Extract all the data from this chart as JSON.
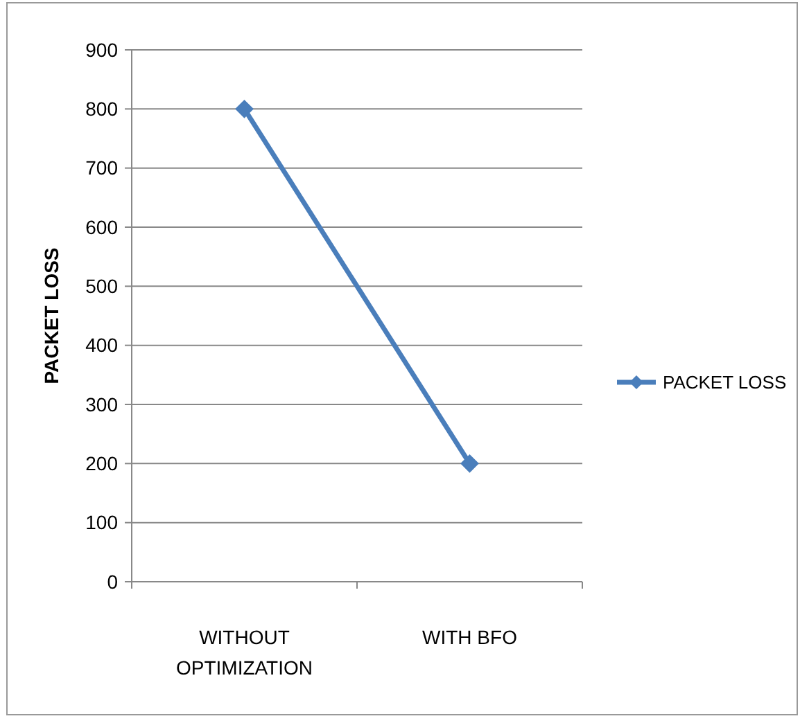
{
  "chart_data": {
    "type": "line",
    "ylabel": "PACKET LOSS",
    "categories": [
      "WITHOUT OPTIMIZATION",
      "WITH BFO"
    ],
    "series": [
      {
        "name": "PACKET LOSS",
        "color": "#4a7ebb",
        "values": [
          800,
          200
        ]
      }
    ],
    "ylim": [
      0,
      900
    ],
    "yticks": [
      0,
      100,
      200,
      300,
      400,
      500,
      600,
      700,
      800,
      900
    ],
    "grid": "y",
    "legend": "right",
    "marker": "diamond",
    "line_style": "solid"
  }
}
